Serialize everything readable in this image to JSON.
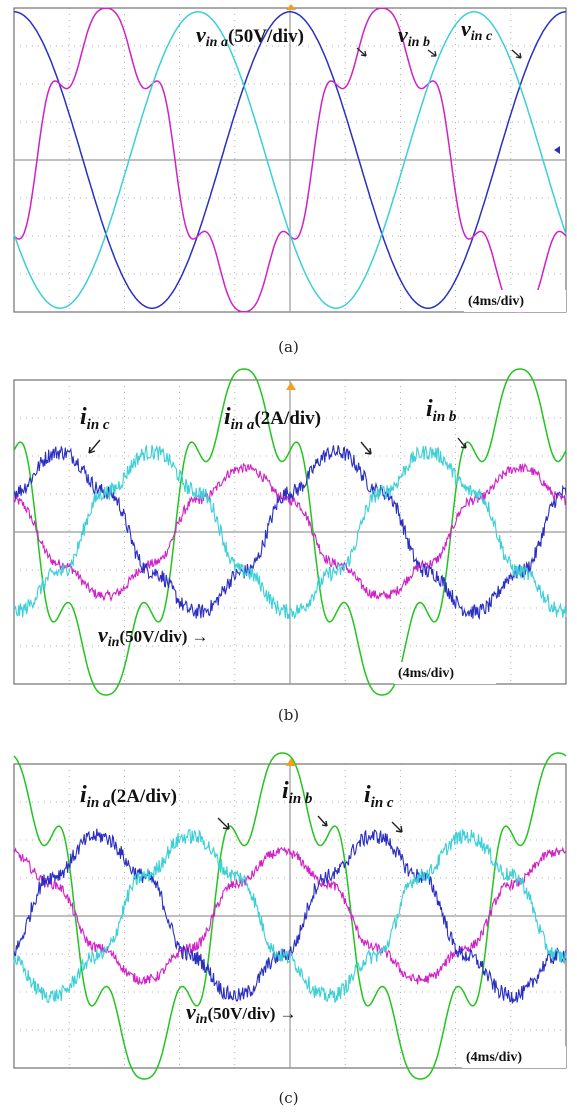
{
  "colors": {
    "blue": "#2b2fc0",
    "cyan": "#3ccfd6",
    "magenta": "#d021c6",
    "green": "#23c41f",
    "grid": "#9a9a9a",
    "trigger": "#f0a020"
  },
  "chart_data": [
    {
      "type": "line",
      "caption": "(a)",
      "time_scale": "(4ms/div)",
      "divisions": {
        "x": 10,
        "y": 8
      },
      "series": [
        {
          "name": "v_in a",
          "color": "blue",
          "amplitude_div": 3.9,
          "phase_deg": 90,
          "period_div": 5.0,
          "harmonic": 0,
          "noise": 0
        },
        {
          "name": "v_in b",
          "color": "magenta",
          "amplitude_div": 3.7,
          "phase_deg": -30,
          "period_div": 5.0,
          "harmonic": 0.16,
          "noise": 0
        },
        {
          "name": "v_in c",
          "color": "cyan",
          "amplitude_div": 3.9,
          "phase_deg": 210,
          "period_div": 5.0,
          "harmonic": 0,
          "noise": 0
        }
      ],
      "labels": {
        "a_main": "v",
        "a_sub": "in a",
        "a_scale": "(50V/div)",
        "b_main": "v",
        "b_sub": "in b",
        "c_main": "v",
        "c_sub": "in c"
      }
    },
    {
      "type": "line",
      "caption": "(b)",
      "time_scale": "(4ms/div)",
      "divisions": {
        "x": 10,
        "y": 8
      },
      "series": [
        {
          "name": "v_in",
          "color": "green",
          "amplitude_div": 3.9,
          "phase_deg": 150,
          "period_div": 5.0,
          "harmonic": 0.2,
          "noise": 0
        },
        {
          "name": "i_in a",
          "color": "magenta",
          "amplitude_div": 1.6,
          "phase_deg": 150,
          "period_div": 5.0,
          "harmonic": 0.1,
          "noise": 0.08
        },
        {
          "name": "i_in b",
          "color": "blue",
          "amplitude_div": 2.0,
          "phase_deg": 30,
          "period_div": 5.0,
          "harmonic": 0.1,
          "noise": 0.1
        },
        {
          "name": "i_in c",
          "color": "cyan",
          "amplitude_div": 2.0,
          "phase_deg": 270,
          "period_div": 5.0,
          "harmonic": 0.1,
          "noise": 0.1
        }
      ],
      "labels": {
        "c_main": "i",
        "c_sub": "in c",
        "a_main": "i",
        "a_sub": "in a",
        "a_scale": "(2A/div)",
        "b_main": "i",
        "b_sub": "in b",
        "v_main": "v",
        "v_sub": "in",
        "v_scale": "(50V/div)",
        "arrow": "→"
      }
    },
    {
      "type": "line",
      "caption": "(c)",
      "time_scale": "(4ms/div)",
      "divisions": {
        "x": 10,
        "y": 8
      },
      "series": [
        {
          "name": "v_in",
          "color": "green",
          "amplitude_div": 3.9,
          "phase_deg": 100,
          "period_div": 5.0,
          "harmonic": 0.2,
          "noise": 0
        },
        {
          "name": "i_in a",
          "color": "magenta",
          "amplitude_div": 1.6,
          "phase_deg": 100,
          "period_div": 5.0,
          "harmonic": 0.1,
          "noise": 0.08
        },
        {
          "name": "i_in b",
          "color": "blue",
          "amplitude_div": 2.0,
          "phase_deg": -20,
          "period_div": 5.0,
          "harmonic": 0.1,
          "noise": 0.1
        },
        {
          "name": "i_in c",
          "color": "cyan",
          "amplitude_div": 2.0,
          "phase_deg": 220,
          "period_div": 5.0,
          "harmonic": 0.1,
          "noise": 0.1
        }
      ],
      "labels": {
        "a_main": "i",
        "a_sub": "in a",
        "a_scale": "(2A/div)",
        "b_main": "i",
        "b_sub": "in b",
        "c_main": "i",
        "c_sub": "in c",
        "v_main": "v",
        "v_sub": "in",
        "v_scale": "(50V/div)",
        "arrow": "→"
      }
    }
  ]
}
